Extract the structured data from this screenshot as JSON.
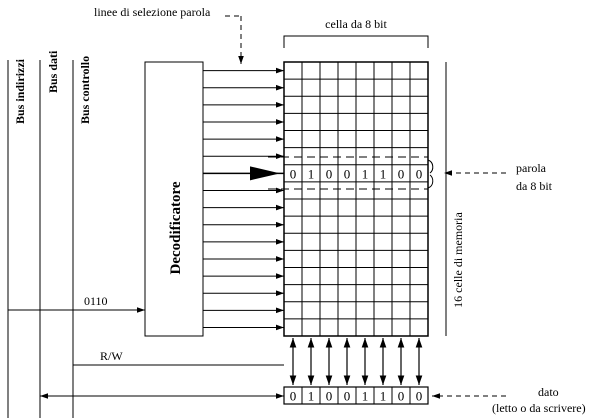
{
  "labels": {
    "bus_indirizzi": "Bus indirizzi",
    "bus_dati": "Bus dati",
    "bus_controllo": "Bus controllo",
    "decoder": "Decodificatore",
    "word_lines": "linee di selezione parola",
    "cell_width": "cella da 8 bit",
    "word_line1": "parola",
    "word_line2": "da 8 bit",
    "memory_cells": "16 celle di memoria",
    "address": "0110",
    "rw": "R/W",
    "data_line1": "dato",
    "data_line2": "(letto o da scrivere)"
  },
  "memory": {
    "rows": 16,
    "bits_per_cell": 8,
    "selected_row": 6,
    "selected_word_bits": [
      "0",
      "1",
      "0",
      "0",
      "1",
      "1",
      "0",
      "0"
    ]
  },
  "data_register_bits": [
    "0",
    "1",
    "0",
    "0",
    "1",
    "1",
    "0",
    "0"
  ]
}
